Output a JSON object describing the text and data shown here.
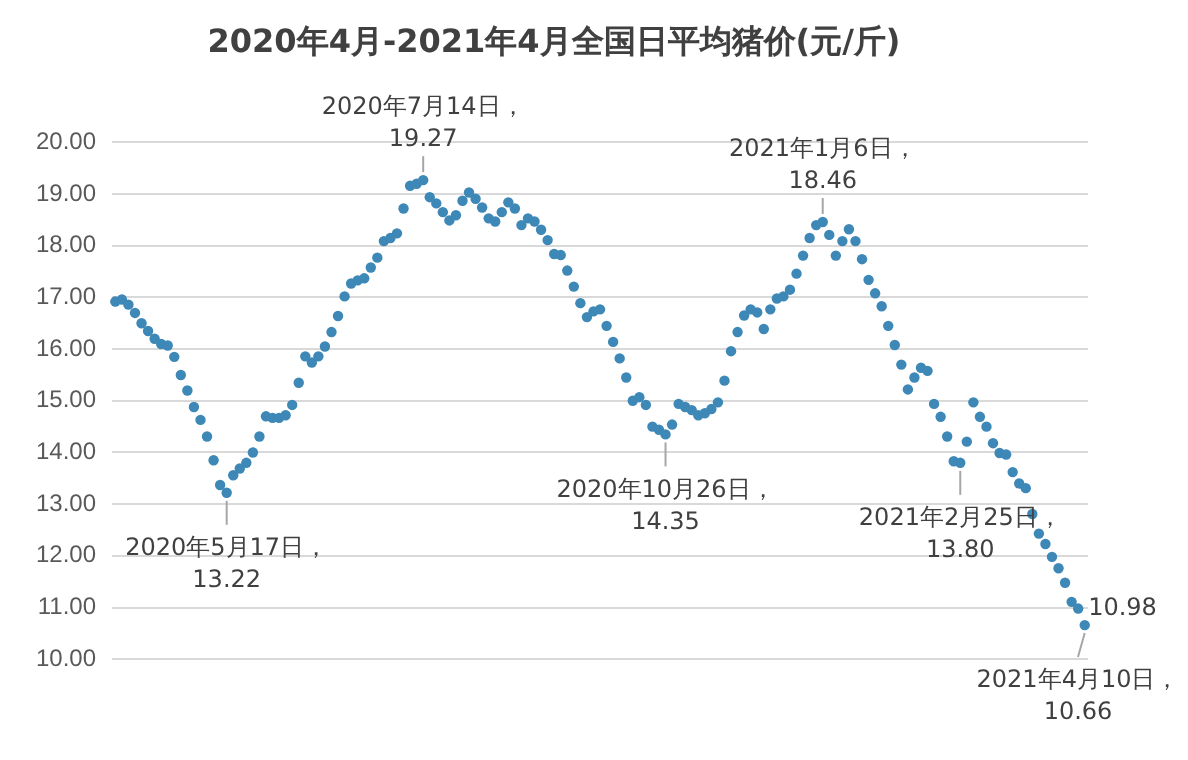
{
  "chart_data": {
    "type": "scatter",
    "title": "2020年4月-2021年4月全国日平均猪价(元/斤)",
    "categories": [
      null,
      null,
      null,
      null,
      null,
      null,
      null,
      null,
      null,
      null,
      null,
      null,
      null,
      null,
      null,
      null,
      null,
      null,
      null,
      null,
      null,
      null,
      null,
      null,
      null,
      null,
      null,
      null,
      null,
      null,
      null,
      null,
      null,
      null,
      null,
      null,
      null,
      null,
      null,
      null,
      null,
      null,
      null,
      null,
      null,
      null,
      null,
      null,
      null,
      null,
      null,
      null,
      null,
      null,
      null,
      null,
      null,
      null,
      null,
      null,
      null,
      null,
      null,
      null,
      null,
      null,
      null,
      null,
      null,
      null,
      null,
      null,
      null,
      null,
      null,
      null,
      null,
      null,
      null,
      null,
      null,
      null,
      null,
      null,
      null,
      null,
      null,
      null,
      null,
      null,
      null,
      null,
      null,
      null,
      null,
      null,
      null,
      null,
      null,
      null,
      null,
      null,
      null,
      null,
      null,
      null,
      null,
      null,
      null,
      null,
      null,
      null,
      null,
      null,
      null,
      null,
      null,
      null,
      null,
      null,
      null,
      null,
      null,
      null,
      null,
      null,
      null,
      null,
      null,
      null,
      null,
      null,
      null,
      null,
      null,
      null,
      null,
      null,
      null,
      null,
      null,
      null,
      null,
      null,
      null,
      null,
      null,
      null,
      null
    ],
    "values": [
      16.92,
      16.96,
      16.86,
      16.7,
      16.5,
      16.35,
      16.2,
      16.1,
      16.07,
      15.85,
      15.5,
      15.2,
      14.88,
      14.63,
      14.31,
      13.85,
      13.37,
      13.22,
      13.56,
      13.69,
      13.8,
      14.0,
      14.31,
      14.7,
      14.67,
      14.67,
      14.72,
      14.92,
      15.35,
      15.86,
      15.74,
      15.86,
      16.05,
      16.33,
      16.64,
      17.02,
      17.27,
      17.33,
      17.37,
      17.58,
      17.77,
      18.09,
      18.15,
      18.24,
      18.72,
      19.16,
      19.2,
      19.27,
      18.94,
      18.82,
      18.65,
      18.49,
      18.59,
      18.87,
      19.03,
      18.91,
      18.74,
      18.53,
      18.47,
      18.65,
      18.84,
      18.72,
      18.4,
      18.53,
      18.47,
      18.31,
      18.11,
      17.84,
      17.82,
      17.52,
      17.21,
      16.89,
      16.62,
      16.73,
      16.77,
      16.45,
      16.14,
      15.82,
      15.45,
      15.0,
      15.07,
      14.92,
      14.5,
      14.44,
      14.35,
      14.54,
      14.94,
      14.88,
      14.82,
      14.72,
      14.76,
      14.84,
      14.97,
      15.39,
      15.96,
      16.33,
      16.65,
      16.77,
      16.71,
      16.39,
      16.77,
      16.98,
      17.02,
      17.15,
      17.46,
      17.81,
      18.15,
      18.4,
      18.46,
      18.21,
      17.81,
      18.09,
      18.32,
      18.09,
      17.74,
      17.34,
      17.08,
      16.83,
      16.45,
      16.08,
      15.7,
      15.22,
      15.45,
      15.64,
      15.58,
      14.94,
      14.69,
      14.31,
      13.83,
      13.8,
      14.21,
      14.97,
      14.69,
      14.5,
      14.18,
      13.99,
      13.96,
      13.62,
      13.4,
      13.31,
      12.81,
      12.43,
      12.23,
      11.98,
      11.76,
      11.48,
      11.11,
      10.98,
      10.66
    ],
    "value_labels": [
      null,
      null,
      null,
      null,
      null,
      null,
      null,
      null,
      null,
      null,
      null,
      null,
      null,
      null,
      null,
      null,
      null,
      null,
      null,
      null,
      null,
      null,
      null,
      null,
      null,
      null,
      null,
      null,
      null,
      null,
      null,
      null,
      null,
      null,
      null,
      null,
      null,
      null,
      null,
      null,
      null,
      null,
      null,
      null,
      null,
      null,
      null,
      null,
      null,
      null,
      null,
      null,
      null,
      null,
      null,
      null,
      null,
      null,
      null,
      null,
      null,
      null,
      null,
      null,
      null,
      null,
      null,
      null,
      null,
      null,
      null,
      null,
      null,
      null,
      null,
      null,
      null,
      null,
      null,
      null,
      null,
      null,
      null,
      null,
      null,
      null,
      null,
      null,
      null,
      null,
      null,
      null,
      null,
      null,
      null,
      null,
      null,
      null,
      null,
      null,
      null,
      null,
      null,
      null,
      null,
      null,
      null,
      null,
      null,
      null,
      null,
      null,
      null,
      null,
      null,
      null,
      null,
      null,
      null,
      null,
      null,
      null,
      null,
      null,
      null,
      null,
      null,
      null,
      null,
      null,
      null,
      null,
      null,
      null,
      null,
      null,
      null,
      null,
      null,
      null,
      null,
      null,
      null,
      null,
      null,
      null,
      null,
      "10.98",
      null
    ],
    "color": "#3d88b6",
    "marker": "circle",
    "ylim": [
      10,
      20
    ],
    "yticks": [
      {
        "value": 10,
        "label": "10.00"
      },
      {
        "value": 11,
        "label": "11.00"
      },
      {
        "value": 12,
        "label": "12.00"
      },
      {
        "value": 13,
        "label": "13.00"
      },
      {
        "value": 14,
        "label": "14.00"
      },
      {
        "value": 15,
        "label": "15.00"
      },
      {
        "value": 16,
        "label": "16.00"
      },
      {
        "value": 17,
        "label": "17.00"
      },
      {
        "value": 18,
        "label": "18.00"
      },
      {
        "value": 19,
        "label": "19.00"
      },
      {
        "value": 20,
        "label": "20.00"
      }
    ],
    "grid": "y",
    "legend": false,
    "annotations": [
      {
        "text": "2020年5月17日，\n13.22",
        "y": 13.22
      },
      {
        "text": "2020年7月14日，\n19.27",
        "y": 19.27
      },
      {
        "text": "2020年10月26日，\n14.35",
        "y": 14.35
      },
      {
        "text": "2021年1月6日，\n18.46",
        "y": 18.46
      },
      {
        "text": "2021年2月25日，\n13.80",
        "y": 13.8
      },
      {
        "text": "2021年4月10日，\n10.66",
        "y": 10.66
      }
    ]
  }
}
